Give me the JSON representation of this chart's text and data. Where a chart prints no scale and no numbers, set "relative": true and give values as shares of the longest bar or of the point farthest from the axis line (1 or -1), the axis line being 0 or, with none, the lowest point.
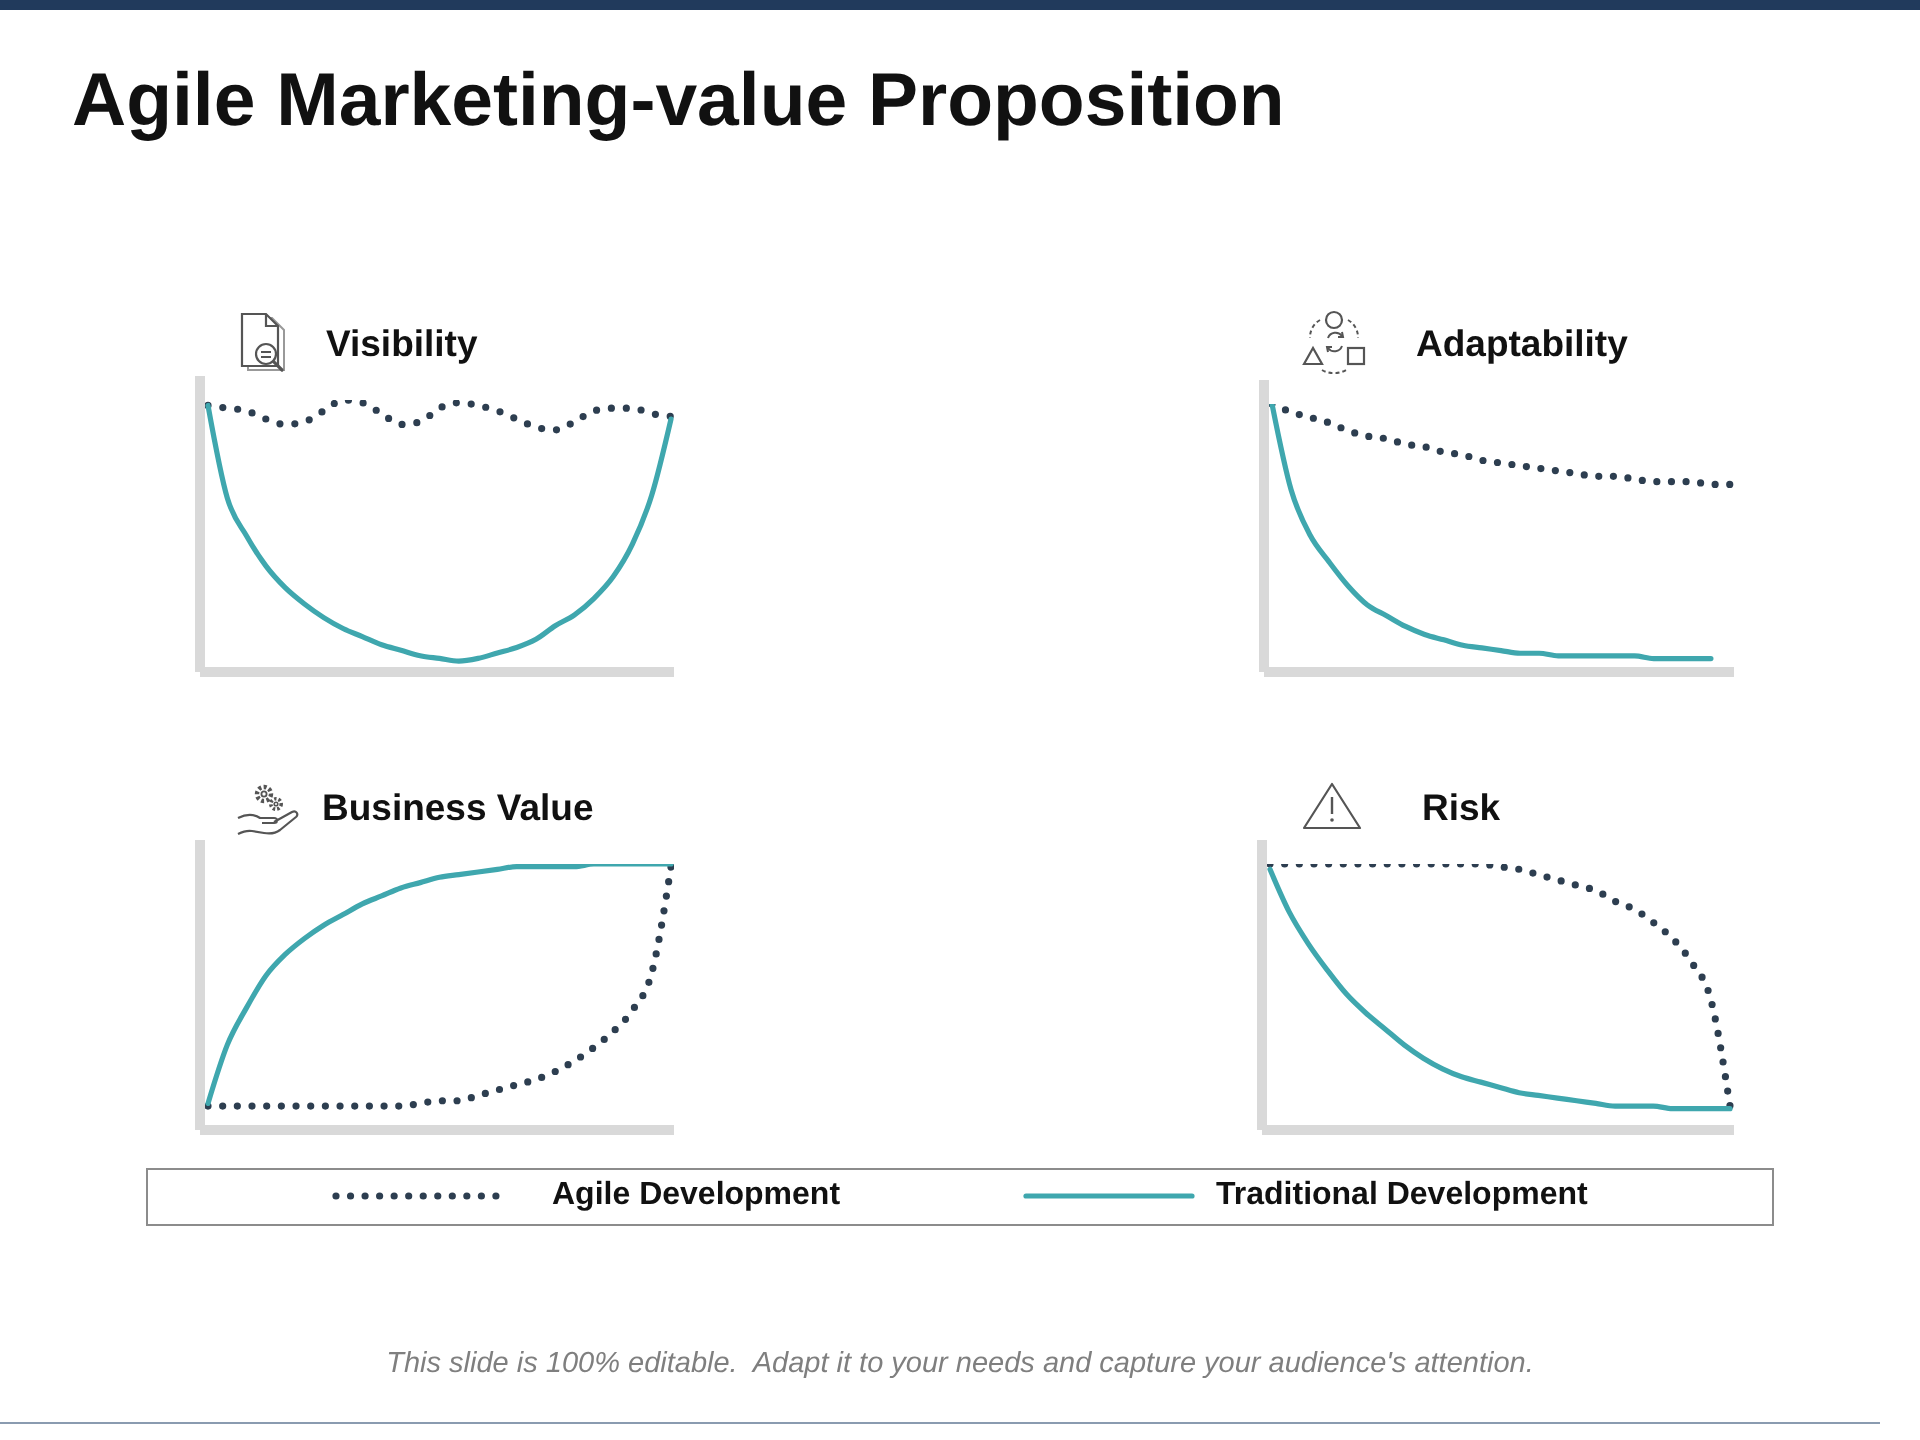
{
  "chart_data": [
    {
      "type": "line",
      "title": "Agile Marketing-value Proposition",
      "subtitle": "Visibility",
      "categories": [
        null,
        null,
        null,
        null,
        null,
        null,
        null,
        null,
        null,
        null,
        null,
        null,
        null,
        null,
        null,
        null,
        null,
        null,
        null,
        null,
        null,
        null,
        null,
        null,
        null
      ],
      "relative": true,
      "series": [
        {
          "color": "#2d3e50",
          "line_style": "dotted",
          "values": [
            0.98,
            0.97,
            0.96,
            0.93,
            0.91,
            0.92,
            0.96,
            1,
            0.99,
            0.95,
            0.91,
            0.92,
            0.97,
            0.99,
            0.98,
            0.96,
            0.93,
            0.9,
            0.89,
            0.92,
            0.96,
            0.97,
            0.97,
            0.95,
            0.94
          ]
        },
        {
          "color": "#3fa7ae",
          "line_style": "solid",
          "values": [
            0.98,
            0.64,
            0.5,
            0.39,
            0.31,
            0.25,
            0.2,
            0.16,
            0.13,
            0.1,
            0.08,
            0.06,
            0.05,
            0.04,
            0.05,
            0.07,
            0.09,
            0.12,
            0.17,
            0.21,
            0.27,
            0.35,
            0.47,
            0.65,
            0.93
          ]
        }
      ]
    },
    {
      "type": "line",
      "subtitle": "Adaptability",
      "categories": [
        null,
        null,
        null,
        null,
        null,
        null,
        null,
        null,
        null,
        null,
        null,
        null,
        null,
        null,
        null,
        null,
        null,
        null,
        null,
        null,
        null,
        null,
        null,
        null,
        null
      ],
      "relative": true,
      "series": [
        {
          "color": "#2d3e50",
          "line_style": "dotted",
          "values": [
            1,
            0.97,
            0.95,
            0.93,
            0.9,
            0.88,
            0.87,
            0.85,
            0.84,
            0.82,
            0.81,
            0.79,
            0.78,
            0.77,
            0.76,
            0.75,
            0.74,
            0.73,
            0.73,
            0.72,
            0.71,
            0.71,
            0.71,
            0.7,
            0.7
          ]
        },
        {
          "color": "#3fa7ae",
          "line_style": "solid",
          "values": [
            1,
            0.68,
            0.51,
            0.41,
            0.32,
            0.25,
            0.21,
            0.17,
            0.14,
            0.12,
            0.1,
            0.09,
            0.08,
            0.07,
            0.07,
            0.06,
            0.06,
            0.06,
            0.06,
            0.06,
            0.05,
            0.05,
            0.05,
            0.05,
            null
          ]
        }
      ]
    },
    {
      "type": "line",
      "subtitle": "Business Value",
      "categories": [
        null,
        null,
        null,
        null,
        null,
        null,
        null,
        null,
        null,
        null,
        null,
        null,
        null,
        null,
        null,
        null,
        null,
        null,
        null,
        null,
        null,
        null,
        null,
        null,
        null
      ],
      "relative": true,
      "series": [
        {
          "color": "#2d3e50",
          "line_style": "dotted",
          "values": [
            0.09,
            0.09,
            0.09,
            0.09,
            0.09,
            0.09,
            0.09,
            0.09,
            0.09,
            0.09,
            0.09,
            0.1,
            0.11,
            0.11,
            0.13,
            0.15,
            0.17,
            0.19,
            0.22,
            0.26,
            0.31,
            0.37,
            0.45,
            0.59,
            0.99
          ]
        },
        {
          "color": "#3fa7ae",
          "line_style": "solid",
          "values": [
            0.1,
            0.32,
            0.46,
            0.58,
            0.66,
            0.72,
            0.77,
            0.81,
            0.85,
            0.88,
            0.91,
            0.93,
            0.95,
            0.96,
            0.97,
            0.98,
            0.99,
            0.99,
            0.99,
            0.99,
            1,
            1,
            1,
            1,
            1
          ]
        }
      ]
    },
    {
      "type": "line",
      "subtitle": "Risk",
      "categories": [
        null,
        null,
        null,
        null,
        null,
        null,
        null,
        null,
        null,
        null,
        null,
        null,
        null,
        null,
        null,
        null,
        null,
        null,
        null,
        null,
        null,
        null,
        null,
        null,
        null
      ],
      "relative": true,
      "legend": "bottom",
      "annotations": [
        "This slide is 100% editable.  Adapt it to your needs and capture your audience's attention."
      ],
      "series": [
        {
          "name": "Agile Development",
          "color": "#2d3e50",
          "line_style": "dotted",
          "values": [
            1,
            1,
            1,
            1,
            1,
            1,
            1,
            1,
            1,
            1,
            1,
            1,
            0.99,
            0.98,
            0.96,
            0.94,
            0.92,
            0.9,
            0.86,
            0.83,
            0.78,
            0.72,
            0.63,
            0.49,
            0.09
          ]
        },
        {
          "name": "Traditional Development",
          "color": "#3fa7ae",
          "line_style": "solid",
          "values": [
            0.98,
            0.82,
            0.7,
            0.6,
            0.51,
            0.44,
            0.38,
            0.32,
            0.27,
            0.23,
            0.2,
            0.18,
            0.16,
            0.14,
            0.13,
            0.12,
            0.11,
            0.1,
            0.09,
            0.09,
            0.09,
            0.08,
            0.08,
            0.08,
            0.08
          ]
        }
      ]
    }
  ]
}
